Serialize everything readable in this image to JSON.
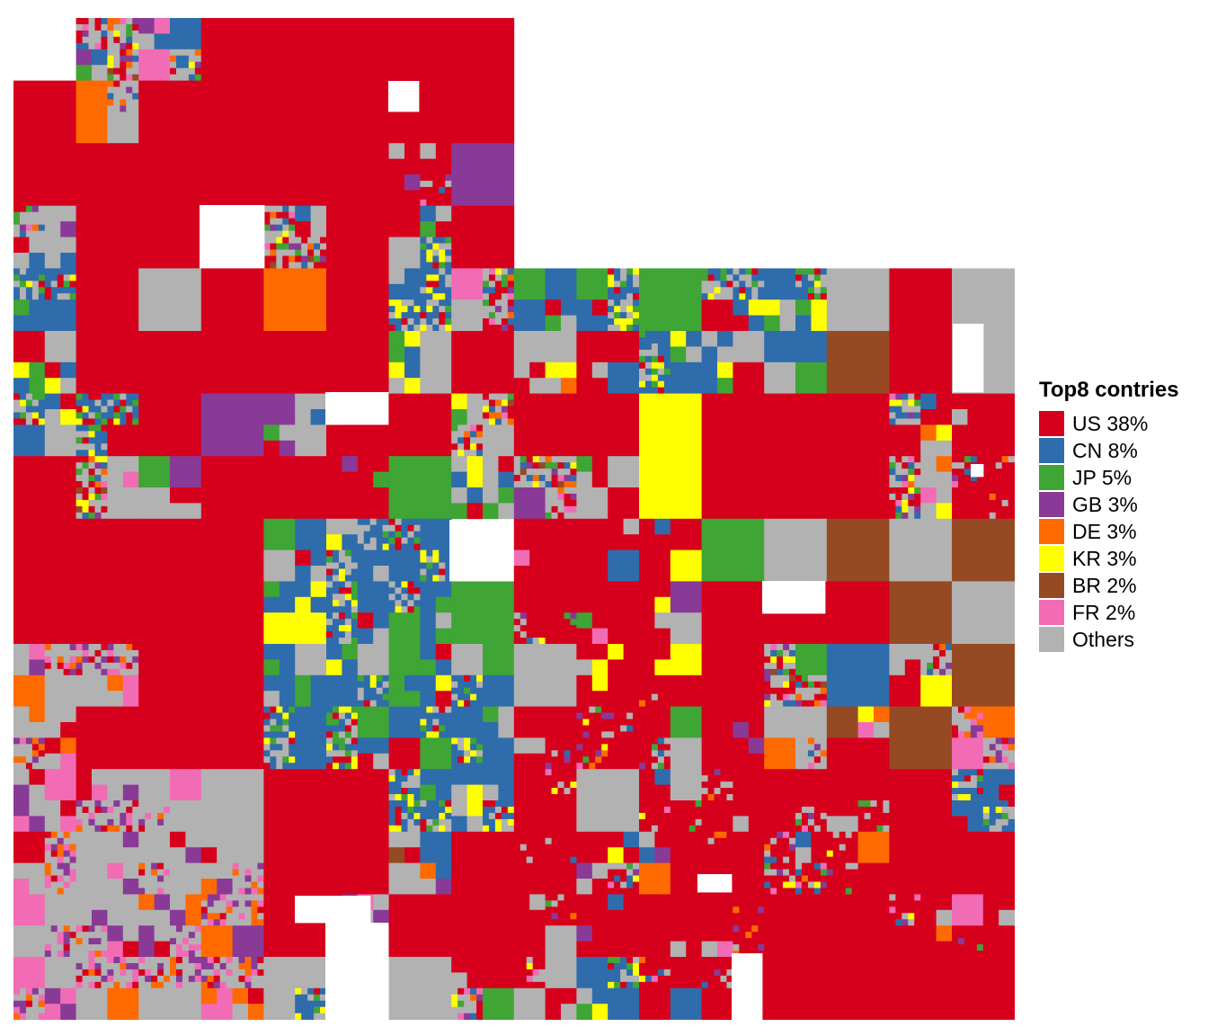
{
  "chart_data": {
    "type": "heatmap",
    "title": "",
    "legend": {
      "title": "Top8 contries",
      "placement": "right",
      "entries": [
        {
          "label": "US 38%",
          "code": "US",
          "share": 38,
          "color": "#d7001c"
        },
        {
          "label": "CN 8%",
          "code": "CN",
          "share": 8,
          "color": "#2f6cac"
        },
        {
          "label": "JP 5%",
          "code": "JP",
          "share": 5,
          "color": "#3fa535"
        },
        {
          "label": "GB 3%",
          "code": "GB",
          "share": 3,
          "color": "#893a97"
        },
        {
          "label": "DE 3%",
          "code": "DE",
          "share": 3,
          "color": "#ff6a00"
        },
        {
          "label": "KR 3%",
          "code": "KR",
          "share": 3,
          "color": "#ffff00"
        },
        {
          "label": "BR 2%",
          "code": "BR",
          "share": 2,
          "color": "#964a23"
        },
        {
          "label": "FR 2%",
          "code": "FR",
          "share": 2,
          "color": "#f26cb5"
        },
        {
          "label": "Others",
          "code": "Others",
          "share": 36,
          "color": "#b2b2b2"
        }
      ]
    },
    "grid": false,
    "axes": "none"
  }
}
